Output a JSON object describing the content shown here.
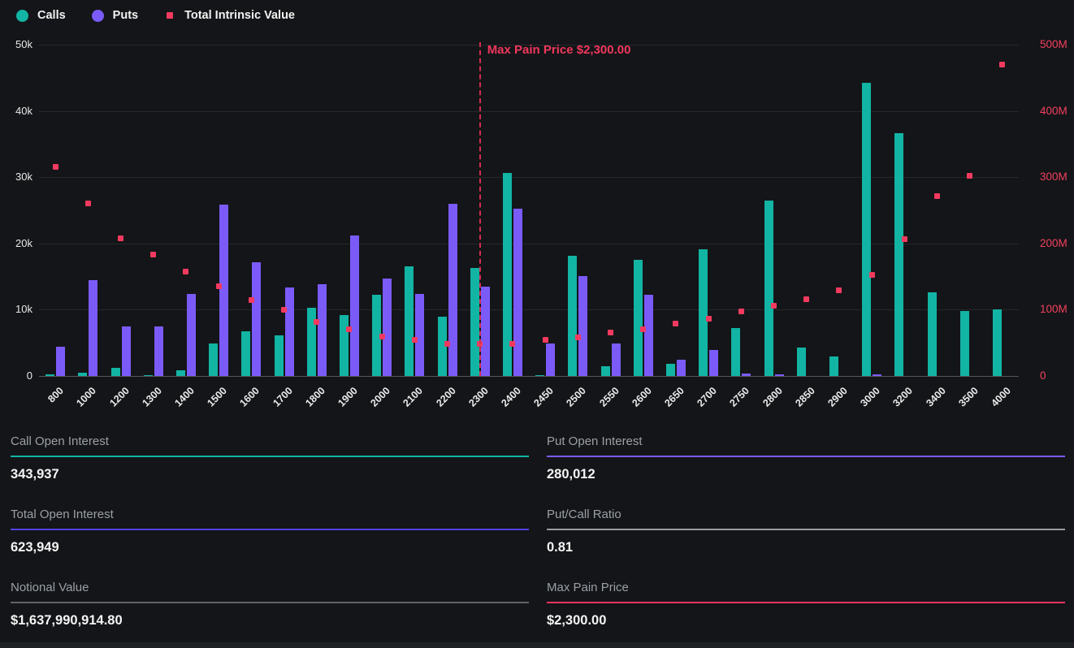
{
  "legend": {
    "calls": "Calls",
    "puts": "Puts",
    "tiv": "Total Intrinsic Value"
  },
  "colors": {
    "calls": "#12b4a4",
    "puts": "#7b5bf8",
    "tiv": "#f23a5f",
    "max_pain_line": "#d42b50",
    "right_axis_text": "#f2415f",
    "grid": "#26282c",
    "background": "#141518"
  },
  "chart_data": {
    "type": "bar",
    "title": "",
    "categories": [
      "800",
      "1000",
      "1200",
      "1300",
      "1400",
      "1500",
      "1600",
      "1700",
      "1800",
      "1900",
      "2000",
      "2100",
      "2200",
      "2300",
      "2400",
      "2450",
      "2500",
      "2550",
      "2600",
      "2650",
      "2700",
      "2750",
      "2800",
      "2850",
      "2900",
      "3000",
      "3200",
      "3400",
      "3500",
      "4000"
    ],
    "series": [
      {
        "name": "Calls",
        "type": "bar",
        "axis": "left",
        "color": "#12b4a4",
        "values": [
          200,
          500,
          1200,
          100,
          900,
          4900,
          6700,
          6100,
          10300,
          9200,
          12300,
          16600,
          9000,
          16300,
          30600,
          100,
          18200,
          1500,
          17500,
          1800,
          19100,
          7200,
          26500,
          4300,
          2900,
          44200,
          36700,
          12600,
          9800,
          10100
        ]
      },
      {
        "name": "Puts",
        "type": "bar",
        "axis": "left",
        "color": "#7b5bf8",
        "values": [
          4400,
          14500,
          7500,
          7500,
          12400,
          25800,
          17200,
          13400,
          13900,
          21200,
          14700,
          12400,
          26000,
          13500,
          25200,
          4900,
          15100,
          4900,
          12300,
          2500,
          3900,
          400,
          200,
          0,
          0,
          200,
          0,
          0,
          0,
          0
        ]
      },
      {
        "name": "Total Intrinsic Value",
        "type": "scatter",
        "axis": "right",
        "color": "#f23a5f",
        "values": [
          315,
          261,
          208,
          183,
          158,
          136,
          115,
          100,
          82,
          70,
          59,
          54,
          49,
          48,
          49,
          55,
          58,
          65,
          71,
          79,
          86,
          97,
          106,
          116,
          129,
          152,
          206,
          271,
          302,
          470
        ]
      }
    ],
    "left_axis": {
      "ticks": [
        "0",
        "10k",
        "20k",
        "30k",
        "40k",
        "50k"
      ],
      "max": 50000,
      "unit": "contracts"
    },
    "right_axis": {
      "ticks": [
        "0",
        "100M",
        "200M",
        "300M",
        "400M",
        "500M"
      ],
      "max": 500,
      "unit": "M"
    },
    "grid": true,
    "legend_position": "top-left",
    "annotation": {
      "text": "Max Pain Price $2,300.00",
      "category": "2300"
    }
  },
  "stats": {
    "items": [
      {
        "label": "Call Open Interest",
        "value": "343,937",
        "accent": "#12b4a4"
      },
      {
        "label": "Put Open Interest",
        "value": "280,012",
        "accent": "#7b5bf8"
      },
      {
        "label": "Total Open Interest",
        "value": "623,949",
        "accent": "#5143e8"
      },
      {
        "label": "Put/Call Ratio",
        "value": "0.81",
        "accent": "#979da3"
      },
      {
        "label": "Notional Value",
        "value": "$1,637,990,914.80",
        "accent": "#5e6368"
      },
      {
        "label": "Max Pain Price",
        "value": "$2,300.00",
        "accent": "#e8335f"
      }
    ]
  }
}
